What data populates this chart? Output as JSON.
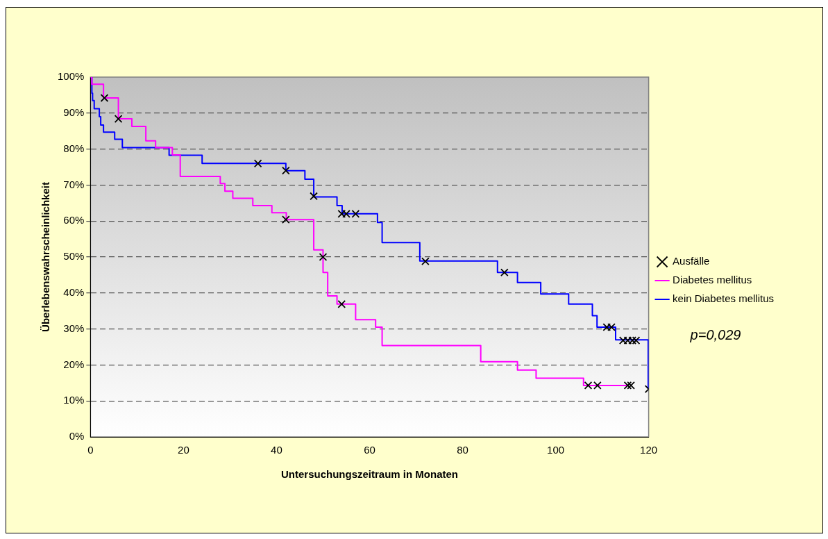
{
  "chart_data": {
    "type": "step",
    "xlabel": "Untersuchungszeitraum in Monaten",
    "ylabel": "Überlebenswahrscheinlichkeit",
    "xlim": [
      0,
      120
    ],
    "xticks": [
      0,
      20,
      40,
      60,
      80,
      100,
      120
    ],
    "ylim": [
      0,
      100
    ],
    "yticks": [
      {
        "value": 0,
        "label": "0%"
      },
      {
        "value": 10,
        "label": "10%"
      },
      {
        "value": 20,
        "label": "20%"
      },
      {
        "value": 30,
        "label": "30%"
      },
      {
        "value": 40,
        "label": "40%"
      },
      {
        "value": 50,
        "label": "50%"
      },
      {
        "value": 60,
        "label": "60%"
      },
      {
        "value": 70,
        "label": "70%"
      },
      {
        "value": 80,
        "label": "80%"
      },
      {
        "value": 90,
        "label": "90%"
      },
      {
        "value": 100,
        "label": "100%"
      }
    ],
    "grid": "y",
    "legend": "right",
    "annotations": [
      "p=0,029"
    ],
    "series": [
      {
        "name": "Ausfälle",
        "type": "scatter",
        "marker": "cross",
        "color": "#000000",
        "x": [
          3,
          6,
          42,
          50,
          54,
          107,
          109,
          115.5,
          116.2,
          36,
          42,
          48,
          54,
          55,
          57,
          72,
          89,
          111,
          112,
          114.5,
          115.5,
          116.5,
          117.3,
          120
        ],
        "values": [
          94.2,
          88.4,
          60.4,
          50,
          36.9,
          14.3,
          14.3,
          14.3,
          14.3,
          76,
          74,
          66.9,
          62,
          62,
          62,
          48.8,
          45.7,
          30.5,
          30.5,
          26.8,
          26.8,
          26.8,
          26.8,
          13.3
        ]
      },
      {
        "name": "Diabetes mellitus",
        "color": "#ff00ff",
        "x": [
          0,
          0.3,
          2.8,
          6,
          8.9,
          11.9,
          14,
          17.6,
          19.3,
          27.9,
          28.9,
          30.6,
          34.9,
          39,
          42.1,
          48,
          50,
          51,
          53,
          57,
          61.3,
          62.7,
          83.9,
          91.8,
          95.8,
          106,
          115.3
        ],
        "values": [
          100,
          98,
          94.2,
          88.4,
          86.3,
          82.3,
          80.4,
          78.4,
          72.4,
          70.4,
          68.3,
          66.3,
          64.3,
          62.3,
          60.4,
          52,
          45.7,
          39.2,
          36.9,
          32.6,
          30.5,
          25.4,
          20.9,
          18.6,
          16.3,
          14.3,
          14.3
        ]
      },
      {
        "name": "kein Diabetes mellitus",
        "color": "#0000ff",
        "x": [
          0,
          0.3,
          0.45,
          0.8,
          1.9,
          2.2,
          2.8,
          5.2,
          6.85,
          16.9,
          24,
          42,
          46.1,
          48,
          53,
          54.1,
          61.7,
          62.7,
          70.8,
          87.5,
          91.8,
          96.8,
          102.8,
          107.9,
          108.9,
          112.9,
          119.9
        ],
        "values": [
          100,
          95.5,
          93.5,
          91.2,
          89,
          86.7,
          84.7,
          82.7,
          80.4,
          78.3,
          76,
          74,
          71.6,
          66.7,
          64.3,
          62,
          59.6,
          54,
          48.9,
          45.7,
          42.9,
          39.7,
          36.9,
          33.7,
          30.5,
          27,
          13.3
        ]
      }
    ]
  }
}
